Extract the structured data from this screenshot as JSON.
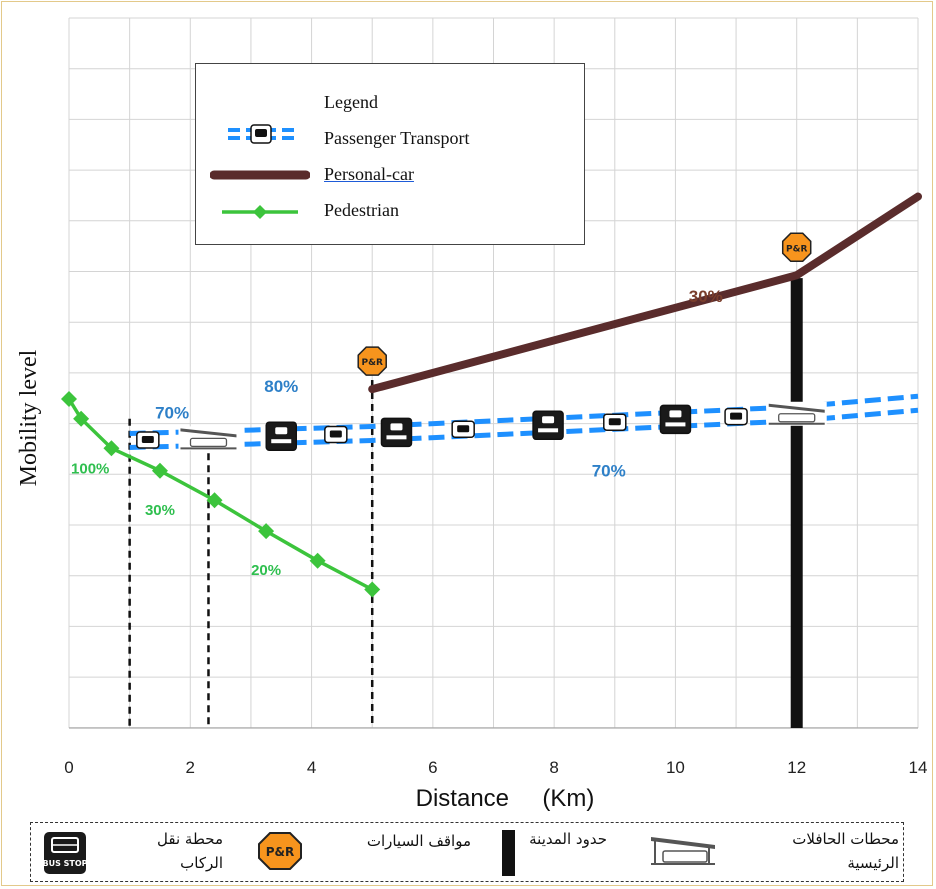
{
  "chart_data": {
    "type": "line",
    "xlabel": "Distance     (Km)",
    "ylabel": "Mobility level",
    "xlim": [
      0,
      14
    ],
    "xticks": [
      0,
      2,
      4,
      6,
      8,
      10,
      12,
      14
    ],
    "grid": true,
    "series": [
      {
        "name": "Passenger Transport",
        "color": "#1e90ff",
        "x": [
          1.0,
          2.3,
          5.0,
          12.0,
          14.0
        ],
        "y": [
          0.99,
          1.02,
          1.09,
          1.37,
          1.52
        ]
      },
      {
        "name": "Personal-car",
        "color": "#5a2c2c",
        "x": [
          5.0,
          12.0,
          14.0
        ],
        "y": [
          1.72,
          3.34,
          4.46
        ]
      },
      {
        "name": "Pedestrian",
        "color": "#3cc43c",
        "x": [
          0.0,
          0.2,
          0.7,
          1.5,
          2.4,
          3.25,
          4.1,
          5.0
        ],
        "y": [
          1.58,
          1.3,
          0.88,
          0.56,
          0.14,
          -0.3,
          -0.72,
          -1.13
        ]
      }
    ],
    "annotations": [
      {
        "text": "70%",
        "x": 1.7,
        "y": 1.3,
        "color": "#2e80c8"
      },
      {
        "text": "80%",
        "x": 3.5,
        "y": 1.68,
        "color": "#2e80c8"
      },
      {
        "text": "70%",
        "x": 8.9,
        "y": 0.48,
        "color": "#2e80c8"
      },
      {
        "text": "30%",
        "x": 10.5,
        "y": 2.96,
        "color": "#7a3e2c"
      },
      {
        "text": "100%",
        "x": 0.35,
        "y": 0.52,
        "color": "#2fbf4f"
      },
      {
        "text": "30%",
        "x": 1.5,
        "y": -0.07,
        "color": "#2fbf4f"
      },
      {
        "text": "20%",
        "x": 3.25,
        "y": -0.92,
        "color": "#2fbf4f"
      }
    ],
    "vlines_dashed_x": [
      1.0,
      2.3,
      5.0
    ],
    "city_boundary_x": 12.0,
    "park_and_ride_x": [
      5.0,
      12.0
    ],
    "bus_stop_x": [
      1.3,
      3.5,
      4.4,
      5.4,
      6.5,
      7.9,
      9.0,
      10.0,
      11.0
    ],
    "bus_station_x": [
      2.3,
      12.0
    ]
  },
  "legend": {
    "title": "Legend",
    "items": [
      {
        "label": "Passenger Transport"
      },
      {
        "label": "Personal-car"
      },
      {
        "label": "Pedestrian"
      }
    ]
  },
  "bottom_legend": {
    "bus_stop": "محطة نقل الركاب",
    "bus_stop_icon_text": "BUS STOP",
    "park_ride": "مواقف السيارات",
    "park_ride_icon_text": "P&R",
    "city_boundary": "حدود المدينة",
    "main_stations": "محطات الحافلات الرئيسية"
  }
}
